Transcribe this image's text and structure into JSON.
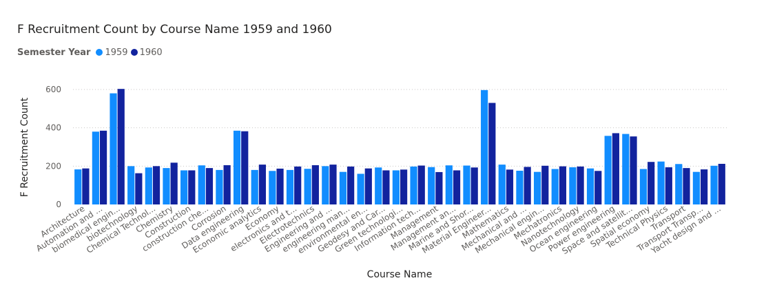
{
  "title": "F Recruitment Count by Course Name 1959 and 1960",
  "legend": {
    "title": "Semester Year",
    "items": [
      {
        "label": "1959",
        "color": "#118DFF"
      },
      {
        "label": "1960",
        "color": "#12239E"
      }
    ]
  },
  "chart_data": {
    "type": "bar",
    "title": "F Recruitment Count by Course Name 1959 and 1960",
    "xlabel": "Course Name",
    "ylabel": "F Recruitment Count",
    "ylim": [
      0,
      600
    ],
    "yticks": [
      0,
      200,
      400,
      600
    ],
    "grid": true,
    "legend_position": "top-left",
    "categories": [
      "Architecture",
      "Automation and ...",
      "biomedical engin...",
      "biotechnology",
      "Chemical Technol...",
      "Chemistry",
      "Construction",
      "construction che...",
      "Corrosion",
      "Data engineering",
      "Economic analytics",
      "Economy",
      "electronics and t...",
      "Electrotechnics",
      "Engineering and ...",
      "engineering man...",
      "environmental en...",
      "Geodesy and Car...",
      "Green technologi...",
      "Information tech...",
      "Management",
      "Management an...",
      "Marine and Shor...",
      "Material Engineer...",
      "Mathematics",
      "Mechanical and ...",
      "Mechanical engin...",
      "Mechatronics",
      "Nanotechnology",
      "Ocean engineering",
      "Power engineering",
      "Space and satellit...",
      "Spatial economy",
      "Technical Physics",
      "Transport",
      "Transport Transp...",
      "Yacht design and ..."
    ],
    "series": [
      {
        "name": "1959",
        "color": "#118DFF",
        "values": [
          183,
          380,
          580,
          200,
          193,
          190,
          178,
          204,
          180,
          385,
          180,
          175,
          180,
          186,
          200,
          170,
          160,
          193,
          178,
          198,
          195,
          204,
          203,
          597,
          208,
          176,
          170,
          185,
          194,
          188,
          358,
          368,
          185,
          224,
          211,
          170,
          202
        ]
      },
      {
        "name": "1960",
        "color": "#12239E",
        "values": [
          188,
          385,
          603,
          163,
          200,
          218,
          178,
          190,
          205,
          382,
          208,
          187,
          198,
          205,
          208,
          198,
          188,
          178,
          182,
          203,
          169,
          178,
          193,
          530,
          182,
          196,
          202,
          199,
          198,
          175,
          372,
          355,
          222,
          194,
          190,
          183,
          212
        ]
      }
    ]
  }
}
